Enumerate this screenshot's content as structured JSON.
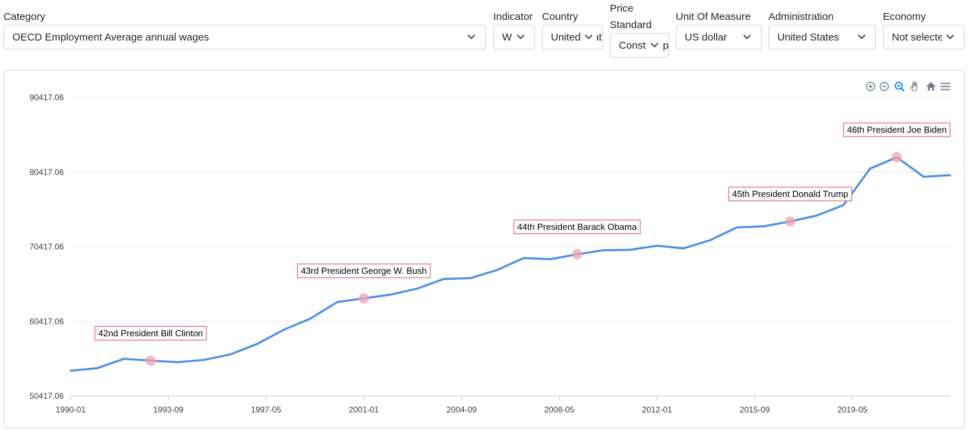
{
  "filters": {
    "category": {
      "label": "Category",
      "value": "OECD Employment Average annual wages"
    },
    "indicator": {
      "label": "Indicator",
      "value": "W"
    },
    "country": {
      "label": "Country",
      "value": "United States"
    },
    "price_standard": {
      "label_line1": "Price",
      "label_line2": "Standard",
      "value": "Constant prices"
    },
    "unit": {
      "label": "Unit Of Measure",
      "value": "US dollar"
    },
    "administration": {
      "label": "Administration",
      "value": "United States"
    },
    "economy": {
      "label": "Economy",
      "value": "Not selected"
    }
  },
  "toolbar": {
    "icons": [
      "zoom-in-icon",
      "zoom-out-icon",
      "zoom-selection-icon",
      "pan-icon",
      "reset-home-icon",
      "menu-icon"
    ]
  },
  "colors": {
    "line": "#4a90e8",
    "marker": "#f5a0ad",
    "annotation_border": "#e0506a",
    "grid": "#e6e6e6"
  },
  "chart_data": {
    "type": "line",
    "y_ticks": [
      "50417.06",
      "60417.06",
      "70417.06",
      "80417.06",
      "90417.06"
    ],
    "ylim": [
      50417.06,
      90417.06
    ],
    "x_ticks": [
      "1990-01",
      "1993-09",
      "1997-05",
      "2001-01",
      "2004-09",
      "2008-05",
      "2012-01",
      "2015-09",
      "2019-05"
    ],
    "x": [
      1990,
      1991,
      1992,
      1993,
      1994,
      1995,
      1996,
      1997,
      1998,
      1999,
      2000,
      2001,
      2002,
      2003,
      2004,
      2005,
      2006,
      2007,
      2008,
      2009,
      2010,
      2011,
      2012,
      2013,
      2014,
      2015,
      2016,
      2017,
      2018,
      2019,
      2020,
      2021,
      2022,
      2023
    ],
    "values": [
      53800,
      54150,
      55400,
      55150,
      54950,
      55250,
      56000,
      57400,
      59300,
      60800,
      63000,
      63500,
      64000,
      64800,
      66100,
      66200,
      67300,
      68900,
      68750,
      69400,
      69950,
      70000,
      70550,
      70200,
      71300,
      73000,
      73150,
      73800,
      74600,
      76000,
      80900,
      82400,
      79800,
      80000
    ],
    "annotations": [
      {
        "x": 1993,
        "y": 55150,
        "label": "42nd President Bill Clinton"
      },
      {
        "x": 2001,
        "y": 63500,
        "label": "43rd President George W. Bush"
      },
      {
        "x": 2009,
        "y": 69400,
        "label": "44th President Barack Obama"
      },
      {
        "x": 2017,
        "y": 73800,
        "label": "45th President Donald Trump"
      },
      {
        "x": 2021,
        "y": 82400,
        "label": "46th President Joe Biden"
      }
    ],
    "grid": true
  }
}
